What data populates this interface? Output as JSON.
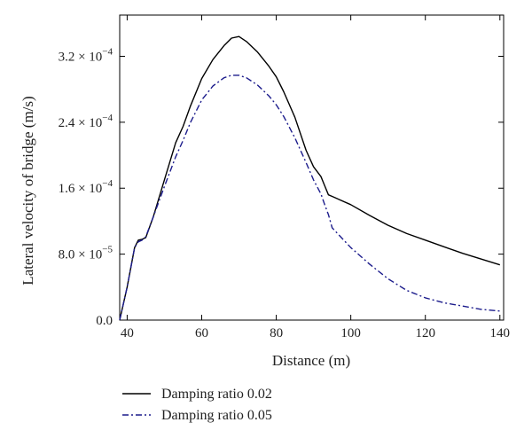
{
  "chart_data": {
    "type": "line",
    "title": "",
    "xlabel": "Distance (m)",
    "ylabel": "Lateral velocity of bridge (m/s)",
    "xlim": [
      38,
      141
    ],
    "ylim": [
      0,
      0.00037
    ],
    "x_ticks": [
      40,
      60,
      80,
      100,
      120,
      140
    ],
    "x_tick_labels": [
      "40",
      "60",
      "80",
      "100",
      "120",
      "140"
    ],
    "y_ticks": [
      0,
      8e-05,
      0.00016,
      0.00024,
      0.00032
    ],
    "y_tick_labels": [
      {
        "mantissa": "0.0",
        "exponent": ""
      },
      {
        "mantissa": "8.0 × 10",
        "exponent": "−5"
      },
      {
        "mantissa": "1.6 × 10",
        "exponent": "−4"
      },
      {
        "mantissa": "2.4 × 10",
        "exponent": "−4"
      },
      {
        "mantissa": "3.2 × 10",
        "exponent": "−4"
      }
    ],
    "grid": false,
    "legend_position": "bottom-left",
    "series": [
      {
        "name": "Damping ratio 0.02",
        "color": "#000000",
        "dash": "solid",
        "x": [
          38,
          40,
          42,
          43,
          44,
          45,
          47,
          50,
          53,
          55,
          57,
          60,
          63,
          66,
          68,
          70,
          72,
          75,
          78,
          80,
          82,
          85,
          88,
          90,
          92,
          93,
          94,
          95,
          100,
          105,
          110,
          115,
          120,
          125,
          130,
          135,
          140
        ],
        "y": [
          0,
          4e-05,
          8.8e-05,
          9.7e-05,
          9.8e-05,
          0.0001,
          0.000125,
          0.00017,
          0.000215,
          0.000235,
          0.00026,
          0.000293,
          0.000316,
          0.000333,
          0.000342,
          0.000344,
          0.000338,
          0.000325,
          0.000308,
          0.000295,
          0.000277,
          0.000246,
          0.000206,
          0.000186,
          0.000174,
          0.000163,
          0.000152,
          0.00015,
          0.00014,
          0.000127,
          0.000115,
          0.000105,
          9.7e-05,
          8.9e-05,
          8.1e-05,
          7.4e-05,
          6.7e-05
        ]
      },
      {
        "name": "Damping ratio 0.05",
        "color": "#1c1c8c",
        "dash": "dashdot",
        "x": [
          38,
          40,
          42,
          43,
          44,
          45,
          47,
          50,
          53,
          55,
          57,
          60,
          63,
          66,
          68,
          70,
          72,
          75,
          78,
          80,
          82,
          85,
          88,
          90,
          92,
          93,
          94,
          95,
          100,
          105,
          110,
          115,
          120,
          125,
          130,
          135,
          140
        ],
        "y": [
          0,
          4e-05,
          8.8e-05,
          9.5e-05,
          9.7e-05,
          0.000101,
          0.000125,
          0.000162,
          0.000198,
          0.000218,
          0.00024,
          0.000267,
          0.000284,
          0.000294,
          0.000297,
          0.000297,
          0.000294,
          0.000285,
          0.000272,
          0.000261,
          0.000247,
          0.000221,
          0.000191,
          0.00017,
          0.000153,
          0.00014,
          0.000128,
          0.000112,
          8.8e-05,
          6.8e-05,
          5e-05,
          3.6e-05,
          2.7e-05,
          2.1e-05,
          1.7e-05,
          1.3e-05,
          1.1e-05
        ]
      }
    ]
  }
}
